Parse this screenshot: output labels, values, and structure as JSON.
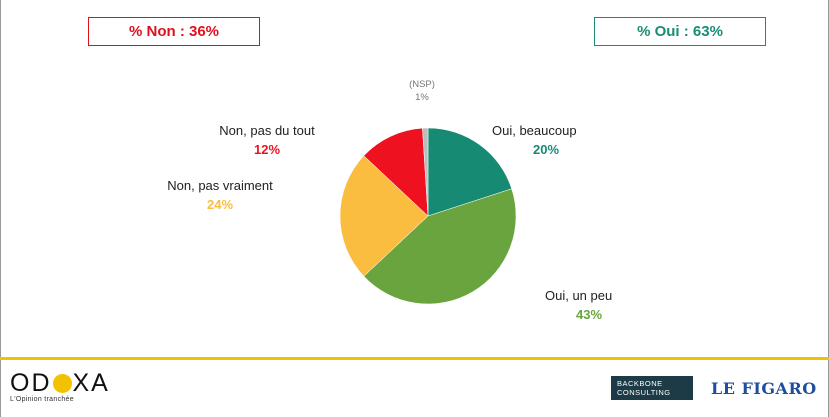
{
  "summary": {
    "non": "% Non : 36%",
    "oui": "% Oui : 63%"
  },
  "chart_data": {
    "type": "pie",
    "slices": [
      {
        "label": "Oui, beaucoup",
        "value": 20,
        "value_label": "20%",
        "color": "#178a73"
      },
      {
        "label": "Oui, un peu",
        "value": 43,
        "value_label": "43%",
        "color": "#6aa43f"
      },
      {
        "label": "Non, pas vraiment",
        "value": 24,
        "value_label": "24%",
        "color": "#fbbd3f"
      },
      {
        "label": "Non, pas du tout",
        "value": 12,
        "value_label": "12%",
        "color": "#ee1120"
      },
      {
        "label": "(NSP)",
        "value": 1,
        "value_label": "1%",
        "color": "#bdbdbd"
      }
    ],
    "start": "12 o'clock",
    "direction": "clockwise"
  },
  "logos": {
    "odoxa": "ODOXA",
    "odoxa_tagline": "L'Opinion tranchée",
    "backbone_line1": "BACKBONE",
    "backbone_line2": "CONSULTING",
    "figaro": "LE FIGARO"
  }
}
